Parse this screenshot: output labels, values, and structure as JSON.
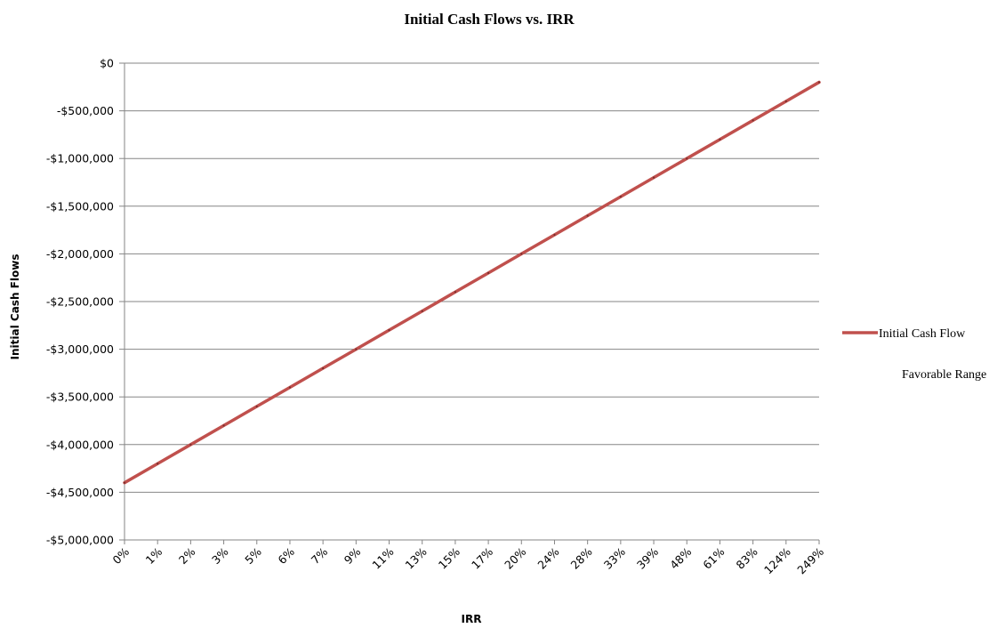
{
  "chart_data": {
    "type": "line",
    "title": "Initial Cash Flows vs. IRR",
    "xlabel": "IRR",
    "ylabel": "Initial Cash Flows",
    "categories": [
      "0%",
      "1%",
      "2%",
      "3%",
      "5%",
      "6%",
      "7%",
      "9%",
      "11%",
      "13%",
      "15%",
      "17%",
      "20%",
      "24%",
      "28%",
      "33%",
      "39%",
      "48%",
      "61%",
      "83%",
      "124%",
      "249%"
    ],
    "series": [
      {
        "name": "Initial Cash Flow",
        "color": "#C0504D",
        "values": [
          -4400000,
          -4200000,
          -4000000,
          -3800000,
          -3600000,
          -3400000,
          -3200000,
          -3000000,
          -2800000,
          -2600000,
          -2400000,
          -2200000,
          -2000000,
          -1800000,
          -1600000,
          -1400000,
          -1200000,
          -1000000,
          -800000,
          -600000,
          -400000,
          -200000
        ]
      }
    ],
    "extra_legend_entries": [
      "Favorable Range"
    ],
    "ylim": [
      -5000000,
      0
    ],
    "yticks": [
      0,
      -500000,
      -1000000,
      -1500000,
      -2000000,
      -2500000,
      -3000000,
      -3500000,
      -4000000,
      -4500000,
      -5000000
    ],
    "ytick_labels": [
      "$0",
      "-$500,000",
      "-$1,000,000",
      "-$1,500,000",
      "-$2,000,000",
      "-$2,500,000",
      "-$3,000,000",
      "-$3,500,000",
      "-$4,000,000",
      "-$4,500,000",
      "-$5,000,000"
    ],
    "grid": true,
    "legend_position": "right",
    "gridline_color": "#868686"
  }
}
